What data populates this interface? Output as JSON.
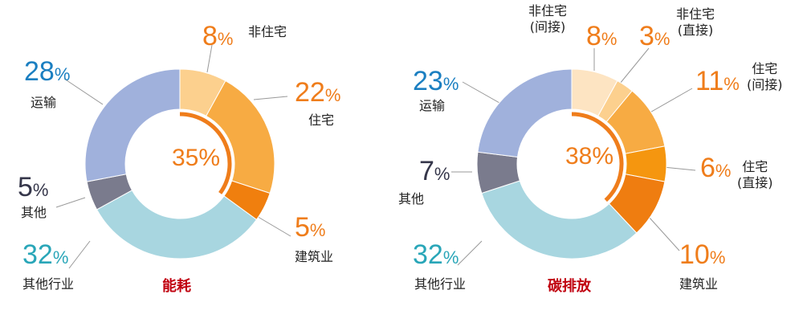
{
  "colors": {
    "orange": "#ef7d1b",
    "blue": "#1b7fc1",
    "cyan": "#29a6b8",
    "gray_dark": "#35364a",
    "title_red": "#c0000f",
    "line": "#999999"
  },
  "chart_data": [
    {
      "type": "pie",
      "title": "能耗",
      "center_value": "35%",
      "categories": [
        "非住宅",
        "住宅",
        "建筑业",
        "其他行业",
        "其他",
        "运输"
      ],
      "values": [
        8,
        22,
        5,
        32,
        5,
        28
      ],
      "labels": [
        {
          "pct": "8",
          "name": "非住宅"
        },
        {
          "pct": "22",
          "name": "住宅"
        },
        {
          "pct": "5",
          "name": "建筑业"
        },
        {
          "pct": "32",
          "name": "其他行业"
        },
        {
          "pct": "5",
          "name": "其他"
        },
        {
          "pct": "28",
          "name": "运输"
        }
      ],
      "slice_colors": [
        "#fcd08e",
        "#f7ab43",
        "#f07f0e",
        "#a8d6e0",
        "#7a7b8d",
        "#a0b1dc"
      ]
    },
    {
      "type": "pie",
      "title": "碳排放",
      "center_value": "38%",
      "categories": [
        "非住宅 (间接)",
        "非住宅 (直接)",
        "住宅 (间接)",
        "住宅 (直接)",
        "建筑业",
        "其他行业",
        "其他",
        "运输"
      ],
      "values": [
        8,
        3,
        11,
        6,
        10,
        32,
        7,
        23
      ],
      "labels": [
        {
          "pct": "8",
          "name1": "非住宅",
          "name2": "(间接)"
        },
        {
          "pct": "3",
          "name1": "非住宅",
          "name2": "(直接)"
        },
        {
          "pct": "11",
          "name1": "住宅",
          "name2": "(间接)"
        },
        {
          "pct": "6",
          "name1": "住宅",
          "name2": "(直接)"
        },
        {
          "pct": "10",
          "name": "建筑业"
        },
        {
          "pct": "32",
          "name": "其他行业"
        },
        {
          "pct": "7",
          "name": "其他"
        },
        {
          "pct": "23",
          "name": "运输"
        }
      ],
      "slice_colors": [
        "#fde4c2",
        "#fcd08e",
        "#f7ab43",
        "#f5960f",
        "#ef7d10",
        "#a8d6e0",
        "#7a7b8d",
        "#a0b1dc"
      ]
    }
  ],
  "pct_sign": "%"
}
